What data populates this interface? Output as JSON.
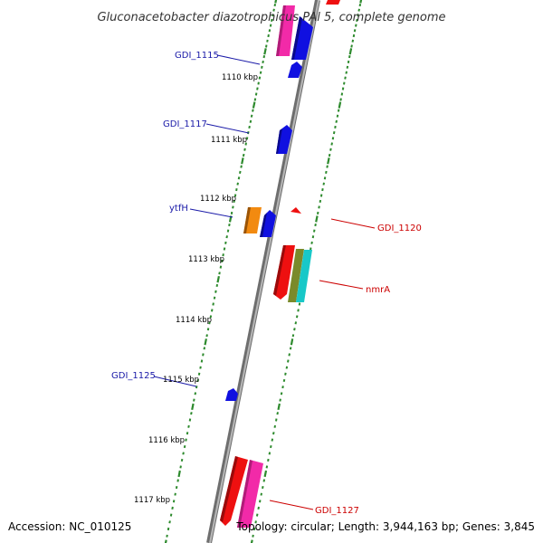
{
  "title": "Gluconacetobacter diazotrophicus PAl 5, complete genome",
  "footer": {
    "accession": "Accession: NC_010125",
    "info": "Topology: circular; Length: 3,944,163 bp; Genes: 3,845"
  },
  "kbp_labels": [
    "1110 kbp",
    "1111 kbp",
    "1112 kbp",
    "1113 kbp",
    "1114 kbp",
    "1115 kbp",
    "1116 kbp",
    "1117 kbp"
  ],
  "gene_labels": {
    "gdi_1115": "GDI_1115",
    "gdi_1117": "GDI_1117",
    "ytfh": "ytfH",
    "gdi_1125": "GDI_1125",
    "gdi_1120": "GDI_1120",
    "nmra": "nmrA",
    "gdi_1127": "GDI_1127"
  },
  "colors": {
    "backbone": "#8c8c8c",
    "tick": "#2d8a2d",
    "left_label": "#1a1aa8",
    "right_label": "#cc0000",
    "blue_gene": "#1010e0",
    "red_gene": "#ee1010",
    "pink_gene": "#f22aa8",
    "orange_gene": "#f28a10",
    "olive_gene": "#7a8a2a",
    "cyan_gene": "#18c8c8"
  }
}
